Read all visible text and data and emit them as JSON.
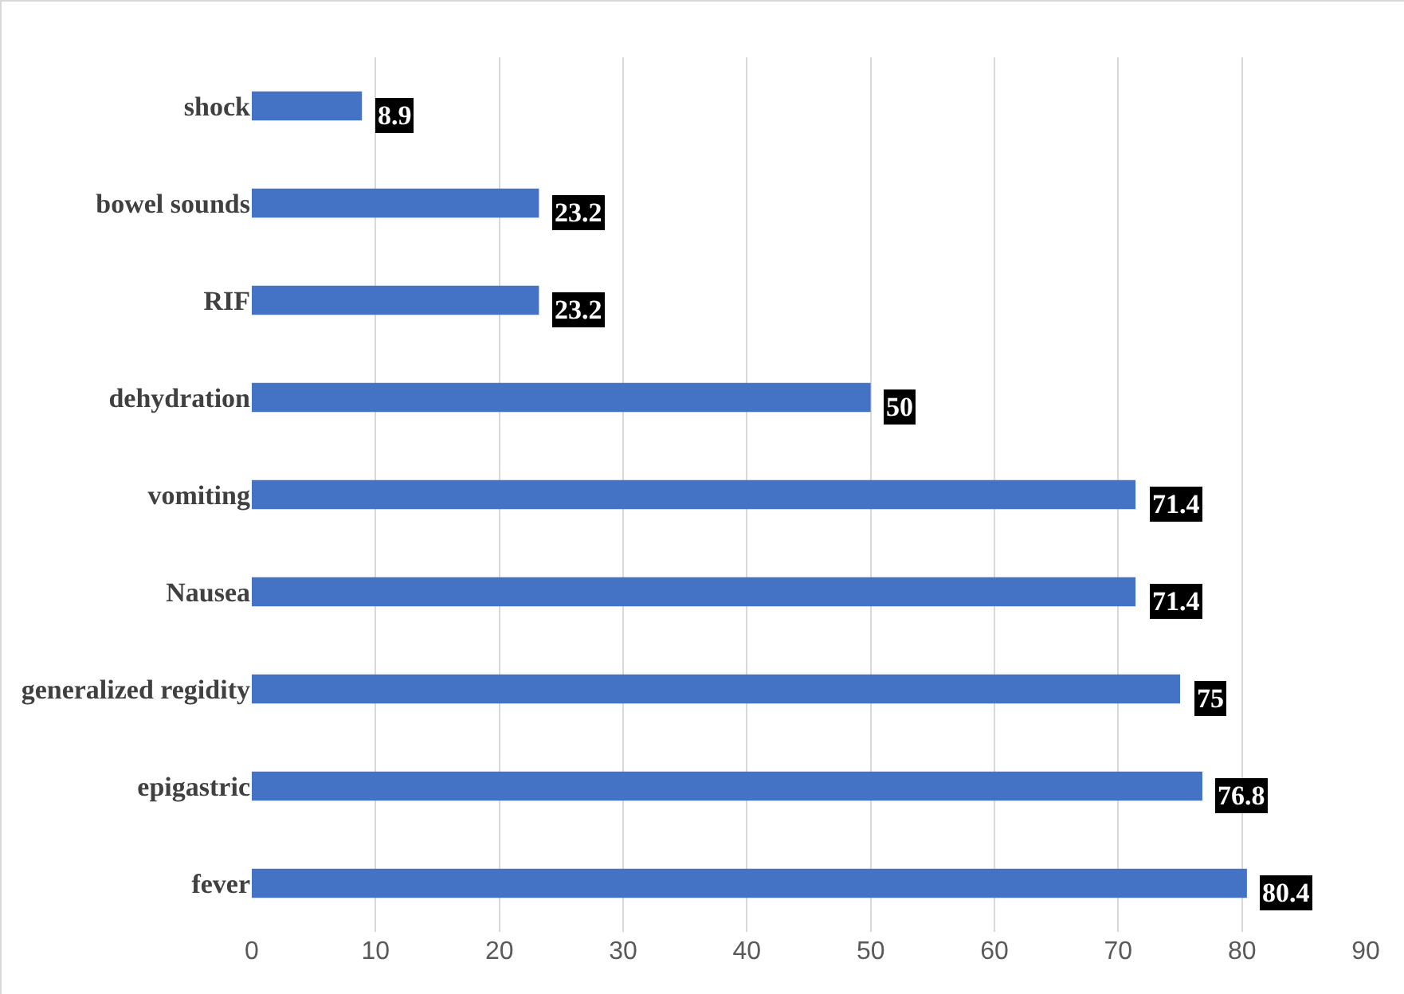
{
  "chart_data": {
    "type": "bar",
    "orientation": "horizontal",
    "categories": [
      "shock",
      "bowel sounds",
      "RIF",
      "dehydration",
      "vomiting",
      "Nausea",
      "generalized regidity",
      "epigastric",
      "fever"
    ],
    "values": [
      8.9,
      23.2,
      23.2,
      50,
      71.4,
      71.4,
      75,
      76.8,
      80.4
    ],
    "color": "#4472c4",
    "xlim": [
      0,
      90
    ],
    "xticks": [
      0,
      10,
      20,
      30,
      40,
      50,
      60,
      70,
      80,
      90
    ],
    "grid": "x",
    "data_labels": true
  }
}
